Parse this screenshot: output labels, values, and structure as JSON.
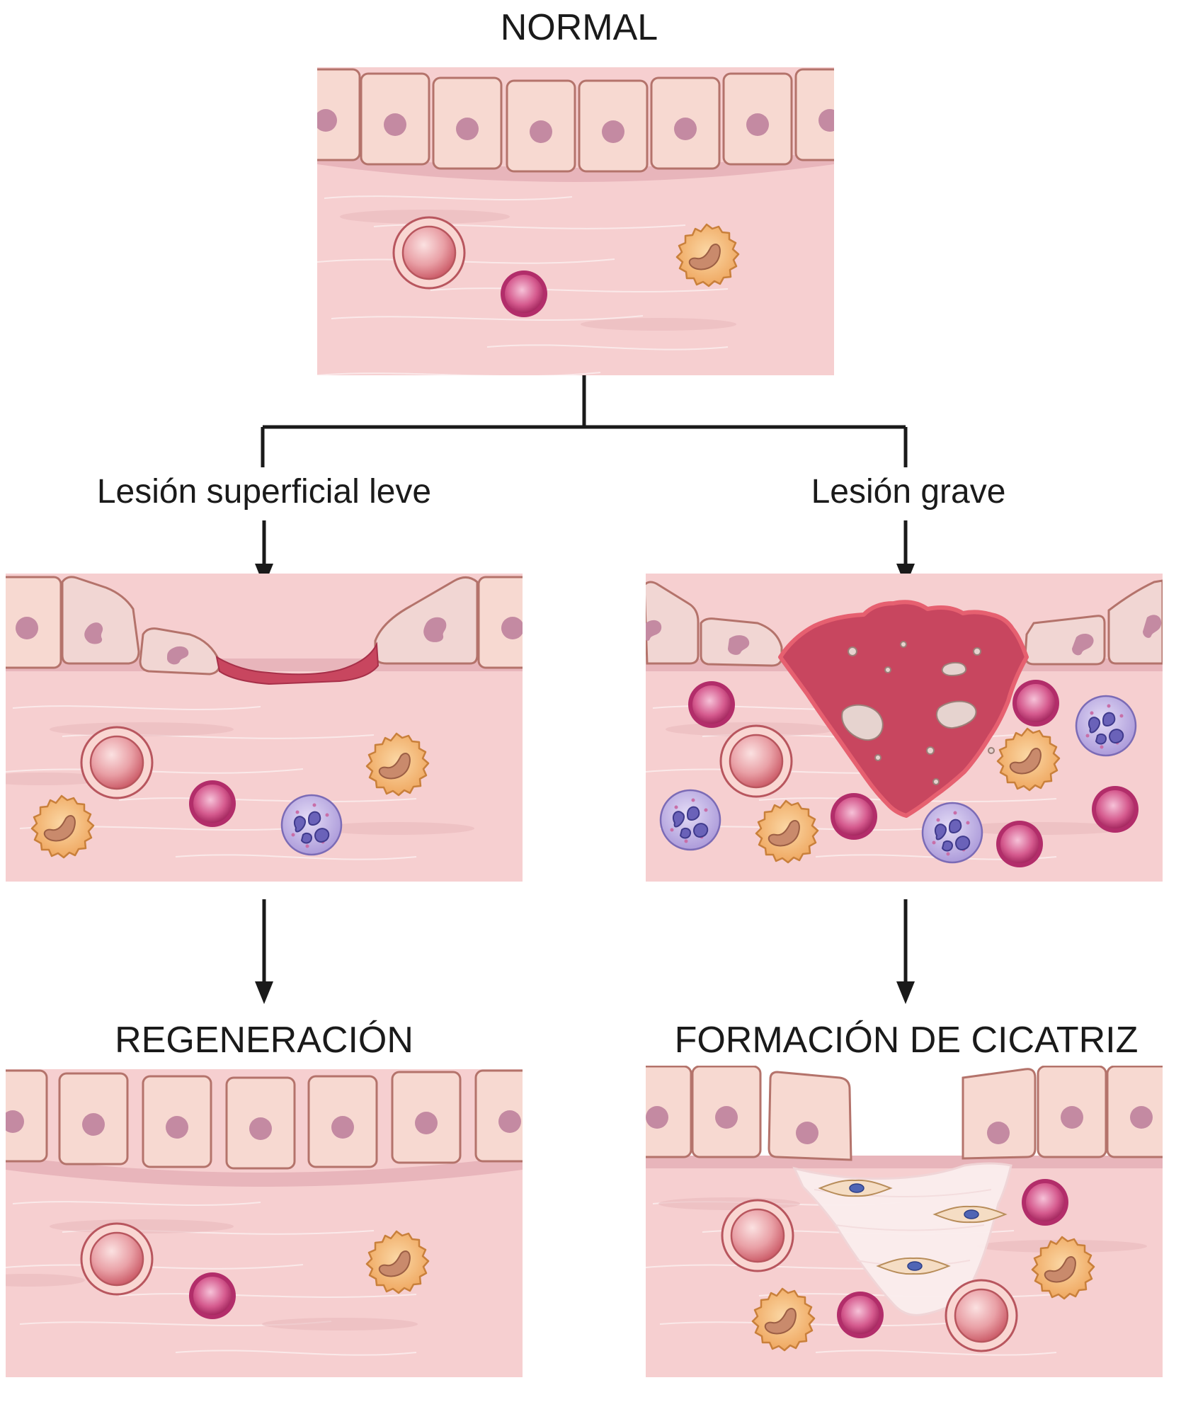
{
  "labels": {
    "normal": "NORMAL",
    "mild_injury": "Lesión superficial leve",
    "severe_injury": "Lesión grave",
    "regeneration": "REGENERACIÓN",
    "scar_formation": "FORMACIÓN DE CICATRIZ"
  },
  "colors": {
    "epithelium": "#f7d8d0",
    "epithelium_border": "#b4736b",
    "nucleus": "#c48aa2",
    "stroma": "#f6cfd0",
    "basement": "#e6b3b8",
    "clot": "#c8465f",
    "vessel": "#e07d86",
    "lymphocyte": "#b22d6a",
    "macrophage": "#e9a55b",
    "neutrophil": "#9f92d6",
    "scar": "#fbeeee",
    "arrow": "#1a1a1a"
  }
}
